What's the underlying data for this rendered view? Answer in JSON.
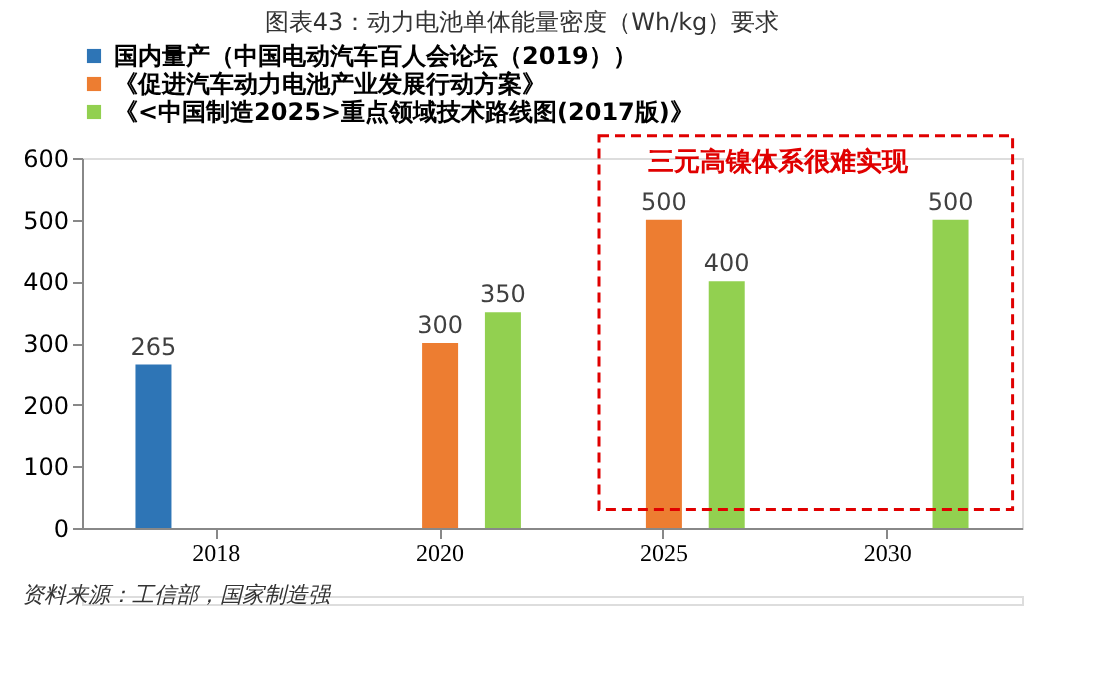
{
  "chart_data": {
    "type": "bar",
    "title": "图表43：动力电池单体能量密度（Wh/kg）要求",
    "categories": [
      "2018",
      "2020",
      "2025",
      "2030"
    ],
    "series": [
      {
        "name": "国内量产（中国电动汽车百人会论坛（2019））",
        "color": "#2e75b6",
        "values": [
          265,
          null,
          null,
          null
        ]
      },
      {
        "name": "《促进汽车动力电池产业发展行动方案》",
        "color": "#ed7d31",
        "values": [
          null,
          300,
          500,
          null
        ]
      },
      {
        "name": "《<中国制造2025>重点领域技术路线图(2017版)》",
        "color": "#92d050",
        "values": [
          null,
          350,
          400,
          500
        ]
      }
    ],
    "ylim": [
      0,
      600
    ],
    "yticks": [
      0,
      100,
      200,
      300,
      400,
      500,
      600
    ],
    "grid": false,
    "legend": "top left",
    "data_labels": true,
    "annotations": [
      "三元高镍体系很难实现",
      "资料来源：工信部，国家制造强"
    ]
  }
}
